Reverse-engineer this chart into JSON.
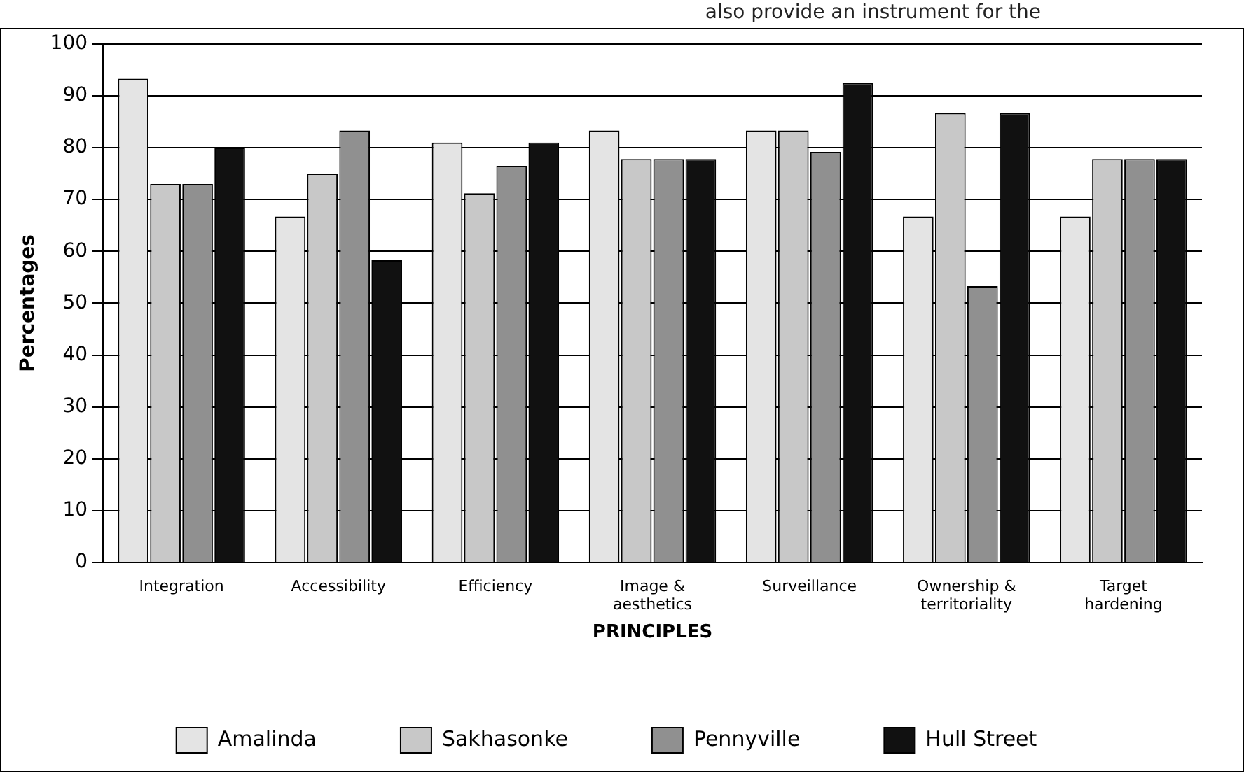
{
  "chart_data": {
    "type": "bar",
    "ylabel": "Percentages",
    "xlabel": "PRINCIPLES",
    "annotations": [
      "also provide an instrument for the"
    ],
    "categories": [
      "Integration",
      "Accessibility",
      "Efficiency",
      "Image & aesthetics",
      "Surveillance",
      "Ownership & territoriality",
      "Target hardening"
    ],
    "series": [
      {
        "name": "Amalinda",
        "color": "#e4e4e4",
        "values": [
          93.3,
          66.7,
          81,
          83.3,
          83.3,
          66.7,
          66.7
        ]
      },
      {
        "name": "Sakhasonke",
        "color": "#c8c8c8",
        "values": [
          73,
          75,
          71.2,
          77.8,
          83.3,
          86.7,
          77.8
        ]
      },
      {
        "name": "Pennyville",
        "color": "#909090",
        "values": [
          73,
          83.3,
          76.5,
          77.8,
          79.2,
          53.3,
          77.8
        ]
      },
      {
        "name": "Hull Street",
        "color": "#111111",
        "values": [
          80,
          58.3,
          81,
          77.8,
          92.5,
          86.7,
          77.8
        ]
      }
    ],
    "ylim": [
      0,
      100
    ],
    "yticks": [
      0,
      10,
      20,
      30,
      40,
      50,
      60,
      70,
      80,
      90,
      100
    ],
    "grid": "y",
    "legend": "bottom"
  }
}
